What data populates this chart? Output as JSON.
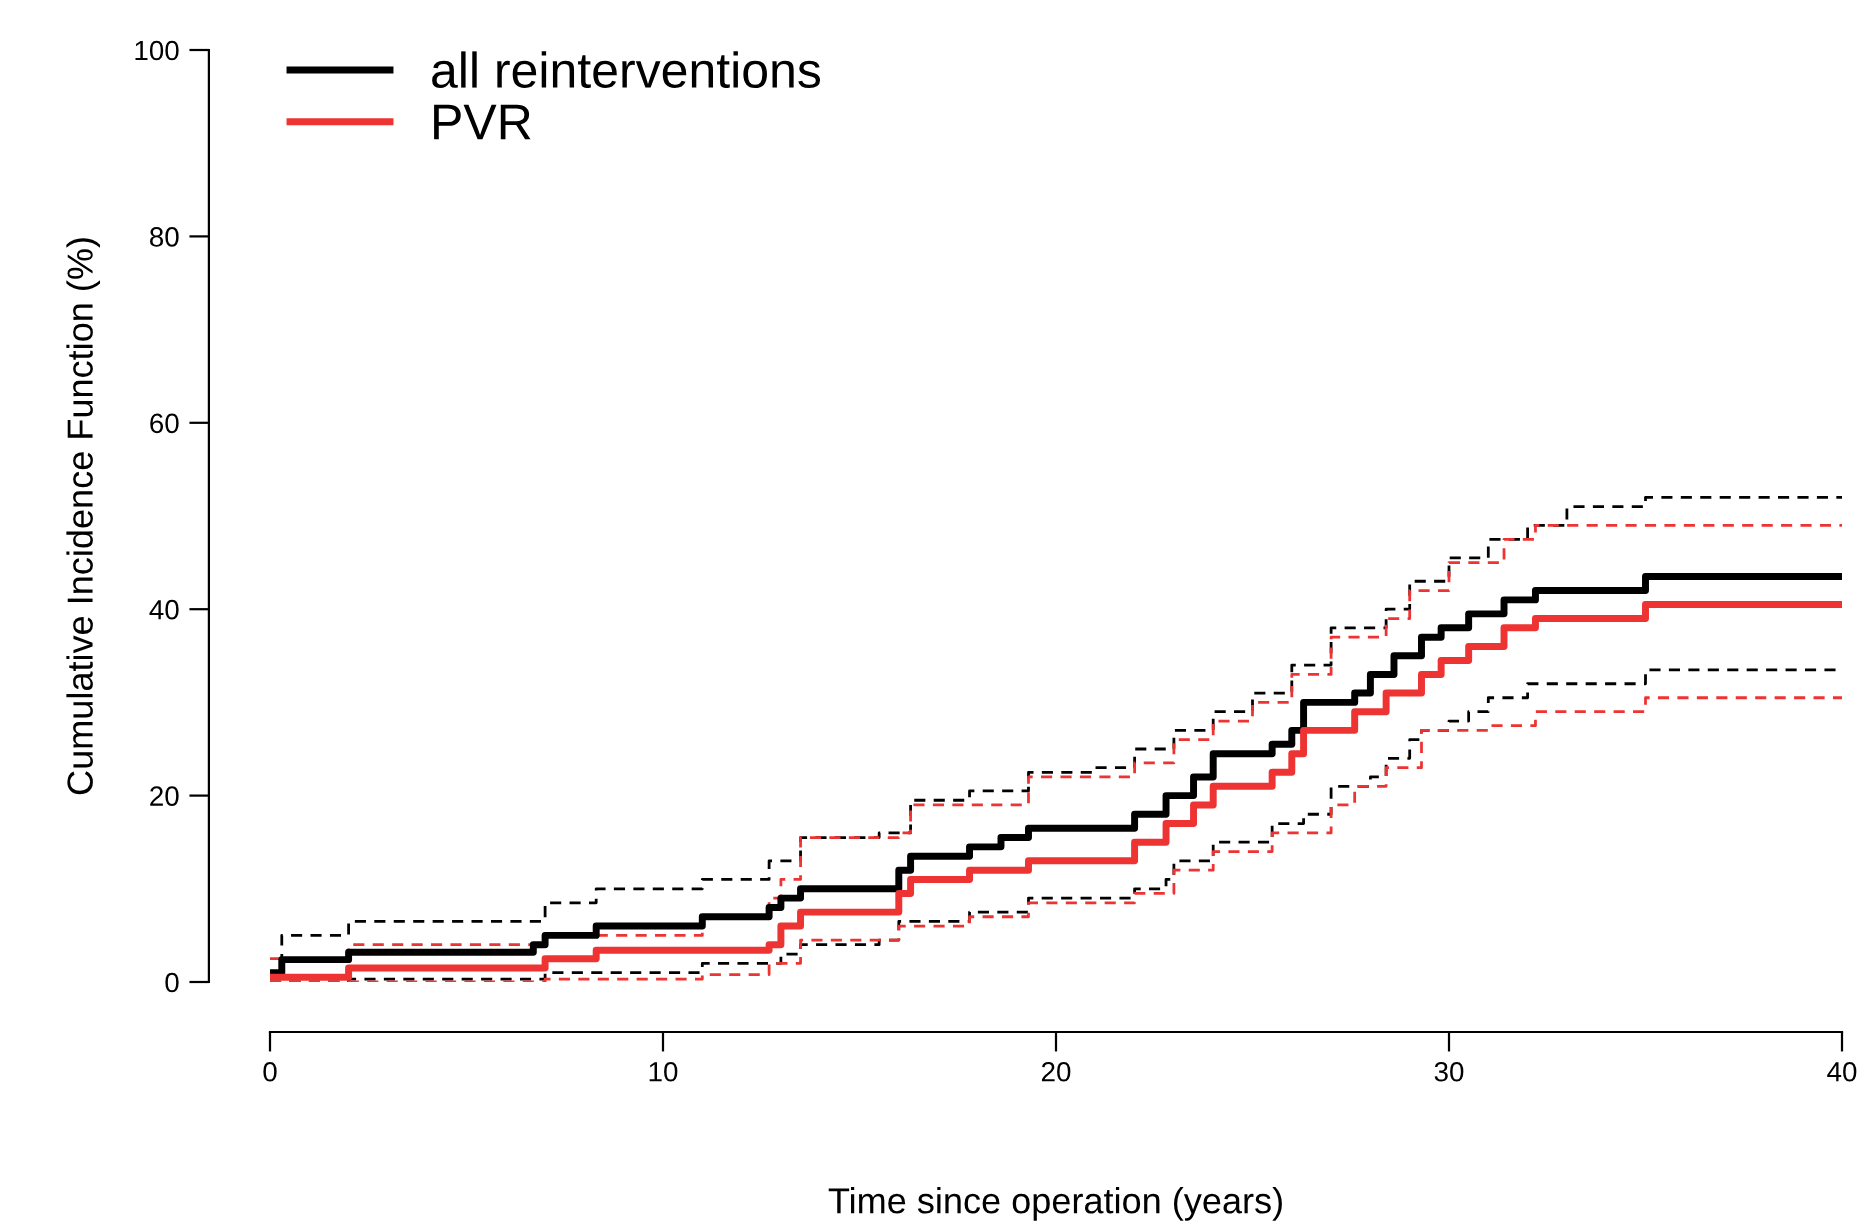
{
  "chart_data": {
    "type": "step",
    "xlabel": "Time since operation (years)",
    "ylabel": "Cumulative Incidence Function (%)",
    "x": [
      0,
      0.3,
      2,
      6.7,
      7,
      8.3,
      11,
      12.7,
      13,
      13.5,
      15.5,
      16,
      16.3,
      17.8,
      18.6,
      19.3,
      21,
      22,
      22.8,
      23,
      23.5,
      24,
      25,
      25.5,
      26,
      26.3,
      27,
      27.6,
      28,
      28.4,
      28.6,
      29,
      29.3,
      29.8,
      30,
      30.5,
      31,
      31.4,
      32,
      32.2,
      33,
      35,
      40
    ],
    "series": [
      {
        "color": "#000000",
        "line_style": "dashed",
        "values": [
          1,
          5,
          6.5,
          6.5,
          8.5,
          10,
          11,
          13,
          13,
          15.5,
          16,
          16,
          19.5,
          20.5,
          20.5,
          22.5,
          23,
          25,
          25,
          27,
          27,
          29,
          31,
          31,
          34,
          34,
          38,
          38,
          38,
          40,
          40,
          43,
          43,
          43,
          45.5,
          45.5,
          47.5,
          47.5,
          49,
          49,
          51,
          52,
          52
        ]
      },
      {
        "color": "#000000",
        "line_style": "dashed",
        "values": [
          0,
          0,
          0.3,
          0.3,
          1,
          1,
          2,
          2,
          3,
          4,
          4.5,
          6.5,
          6.5,
          7.5,
          7.5,
          9,
          9,
          10,
          11,
          13,
          13,
          15,
          15,
          17,
          17,
          18,
          21,
          21,
          22,
          24,
          24,
          26,
          27,
          27,
          28,
          29,
          30.5,
          30.5,
          32,
          32,
          32,
          33.5,
          33.5
        ]
      },
      {
        "color": "#ee3333",
        "line_style": "dashed",
        "values": [
          2.5,
          2.5,
          4,
          4,
          5,
          5,
          7,
          9,
          11,
          15.5,
          15.5,
          16,
          19,
          19,
          19,
          22,
          22,
          23.5,
          23.5,
          26,
          26,
          28,
          30,
          30,
          33,
          33,
          37,
          37,
          37,
          39,
          39,
          42,
          42,
          42,
          45,
          45,
          45,
          47.5,
          47.5,
          49,
          49,
          49,
          49
        ]
      },
      {
        "color": "#ee3333",
        "line_style": "dashed",
        "values": [
          0,
          0,
          0,
          0,
          0.3,
          0.3,
          0.8,
          2,
          2,
          4.5,
          4.5,
          6,
          6,
          7,
          7,
          8.5,
          8.5,
          9.5,
          9.5,
          12,
          12,
          14,
          14,
          16,
          16,
          16,
          19,
          21,
          21,
          23,
          23,
          23,
          27,
          27,
          27,
          27,
          27.5,
          27.5,
          27.5,
          29,
          29,
          30.5,
          30.5
        ]
      },
      {
        "name": "all reinterventions",
        "color": "#000000",
        "line_style": "solid",
        "values": [
          1,
          2.4,
          3.2,
          4,
          5,
          6,
          7,
          8,
          9,
          10,
          10,
          12,
          13.5,
          14.5,
          15.5,
          16.5,
          16.5,
          18,
          20,
          20,
          22,
          24.5,
          24.5,
          25.5,
          27,
          30,
          30,
          31,
          33,
          33,
          35,
          35,
          37,
          38,
          38,
          39.5,
          39.5,
          41,
          41,
          42,
          42,
          43.5,
          43.5
        ]
      },
      {
        "name": "PVR",
        "color": "#ee3333",
        "line_style": "solid",
        "values": [
          0.5,
          0.5,
          1.5,
          1.5,
          2.5,
          3.4,
          3.4,
          4,
          6,
          7.5,
          7.5,
          9.5,
          11,
          12,
          12,
          13,
          13,
          15,
          17,
          17,
          19,
          21,
          21,
          22.5,
          24.5,
          27,
          27,
          29,
          29,
          31,
          31,
          31,
          33,
          34.5,
          34.5,
          36,
          36,
          38,
          38,
          39,
          39,
          40.5,
          40.5
        ]
      }
    ],
    "xlim": [
      0,
      40
    ],
    "ylim": [
      0,
      100
    ],
    "xticks": [
      0,
      10,
      20,
      30,
      40
    ],
    "yticks": [
      0,
      20,
      40,
      60,
      80,
      100
    ],
    "legend": "top left",
    "grid": false
  }
}
